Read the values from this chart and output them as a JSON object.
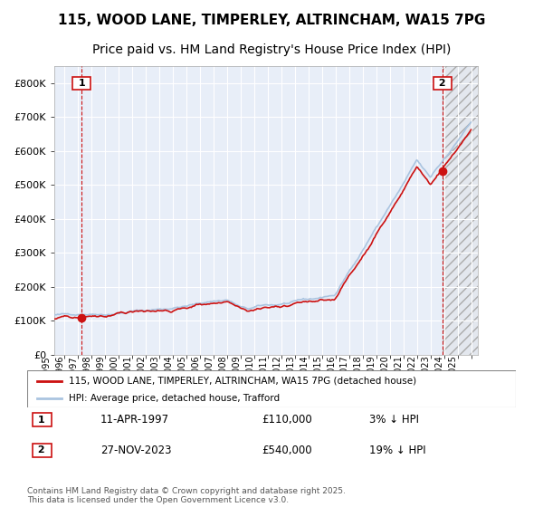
{
  "title1": "115, WOOD LANE, TIMPERLEY, ALTRINCHAM, WA15 7PG",
  "title2": "Price paid vs. HM Land Registry's House Price Index (HPI)",
  "ylim": [
    0,
    850000
  ],
  "xlim_start": 1995.25,
  "xlim_end": 2026.5,
  "plot_bg_color": "#e8eef8",
  "grid_color": "#ffffff",
  "hpi_color": "#aac4e0",
  "price_color": "#cc1111",
  "sale1_date": 1997.27,
  "sale1_price": 110000,
  "sale2_date": 2023.9,
  "sale2_price": 540000,
  "legend_line1": "115, WOOD LANE, TIMPERLEY, ALTRINCHAM, WA15 7PG (detached house)",
  "legend_line2": "HPI: Average price, detached house, Trafford",
  "annotation1_date": "11-APR-1997",
  "annotation1_price": "£110,000",
  "annotation1_hpi": "3% ↓ HPI",
  "annotation2_date": "27-NOV-2023",
  "annotation2_price": "£540,000",
  "annotation2_hpi": "19% ↓ HPI",
  "footer": "Contains HM Land Registry data © Crown copyright and database right 2025.\nThis data is licensed under the Open Government Licence v3.0.",
  "dashed_line_color": "#cc1111",
  "title_fontsize": 11,
  "subtitle_fontsize": 10
}
